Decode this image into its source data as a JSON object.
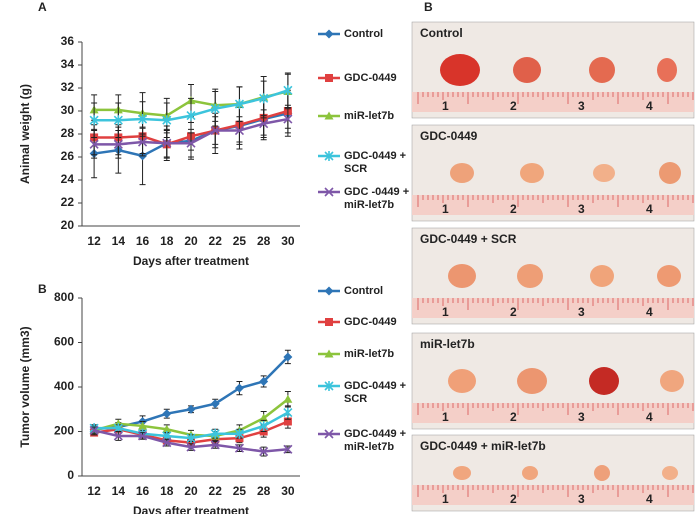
{
  "chart_data": [
    {
      "type": "line",
      "panel_label": "A",
      "x_label": "Days after treatment",
      "y_label": "Animal weight (g)",
      "categories": [
        12,
        14,
        16,
        18,
        20,
        22,
        25,
        28,
        30
      ],
      "ylim": [
        20,
        36
      ],
      "yticks": [
        20,
        22,
        24,
        26,
        28,
        30,
        32,
        34,
        36
      ],
      "series": [
        {
          "name": "Control",
          "color": "#2e75b6",
          "marker": "diamond",
          "values": [
            26.3,
            26.6,
            26.1,
            27.2,
            27.4,
            28.3,
            28.7,
            29.3,
            29.8
          ],
          "errors": [
            2.1,
            2.0,
            2.5,
            1.5,
            1.6,
            2.0,
            2.0,
            1.8,
            2.0
          ]
        },
        {
          "name": "GDC-0449",
          "color": "#e04040",
          "marker": "square",
          "values": [
            27.7,
            27.7,
            27.8,
            27.1,
            27.8,
            28.3,
            28.8,
            29.4,
            30.0
          ],
          "errors": [
            1.5,
            1.5,
            1.5,
            1.2,
            1.2,
            1.5,
            1.5,
            1.5,
            1.5
          ]
        },
        {
          "name": "miR-let7b",
          "color": "#8cc43c",
          "marker": "triangle",
          "values": [
            30.1,
            30.1,
            29.8,
            29.6,
            30.9,
            30.5,
            30.6,
            31.2,
            31.7
          ],
          "errors": [
            1.3,
            1.3,
            1.8,
            1.5,
            1.4,
            1.4,
            1.5,
            1.8,
            1.5
          ]
        },
        {
          "name": "GDC-0449 + SCR",
          "color": "#3cc4dc",
          "marker": "asterisk",
          "values": [
            29.2,
            29.2,
            29.3,
            29.2,
            29.6,
            30.2,
            30.6,
            31.1,
            31.8
          ],
          "errors": [
            1.5,
            1.5,
            1.5,
            1.5,
            1.5,
            1.5,
            1.5,
            1.5,
            1.5
          ]
        },
        {
          "name": "GDC -0449 + miR-let7b",
          "color": "#7e57a8",
          "marker": "x",
          "values": [
            27.1,
            27.1,
            27.3,
            27.2,
            27.2,
            28.3,
            28.3,
            28.9,
            29.3
          ],
          "errors": [
            1.2,
            1.2,
            1.2,
            1.2,
            1.2,
            1.2,
            1.2,
            1.2,
            1.2
          ]
        }
      ]
    },
    {
      "type": "line",
      "panel_label": "B",
      "x_label": "Days after treatment",
      "y_label": "Tumor volume (mm3)",
      "categories": [
        12,
        14,
        16,
        18,
        20,
        22,
        25,
        28,
        30
      ],
      "ylim": [
        0,
        800
      ],
      "yticks": [
        0,
        200,
        400,
        600,
        800
      ],
      "series": [
        {
          "name": "Control",
          "color": "#2e75b6",
          "marker": "diamond",
          "values": [
            210,
            220,
            245,
            280,
            300,
            325,
            395,
            425,
            535
          ],
          "errors": [
            20,
            20,
            25,
            20,
            15,
            20,
            30,
            25,
            30
          ]
        },
        {
          "name": "GDC-0449",
          "color": "#e04040",
          "marker": "square",
          "values": [
            195,
            210,
            185,
            160,
            150,
            165,
            170,
            200,
            245
          ],
          "errors": [
            15,
            15,
            15,
            15,
            15,
            20,
            20,
            25,
            30
          ]
        },
        {
          "name": "miR-let7b",
          "color": "#8cc43c",
          "marker": "triangle",
          "values": [
            205,
            235,
            225,
            210,
            185,
            180,
            205,
            260,
            345
          ],
          "errors": [
            20,
            20,
            20,
            20,
            20,
            20,
            25,
            30,
            35
          ]
        },
        {
          "name": "GDC-0449 + SCR",
          "color": "#3cc4dc",
          "marker": "asterisk",
          "values": [
            215,
            215,
            190,
            180,
            170,
            190,
            190,
            225,
            285
          ],
          "errors": [
            15,
            15,
            15,
            15,
            15,
            20,
            20,
            25,
            30
          ]
        },
        {
          "name": "GDC-0449 + miR-let7b",
          "color": "#7e57a8",
          "marker": "x",
          "values": [
            205,
            180,
            180,
            150,
            130,
            140,
            125,
            110,
            120
          ],
          "errors": [
            15,
            20,
            15,
            15,
            15,
            15,
            15,
            20,
            15
          ]
        }
      ]
    }
  ],
  "photo_panel": {
    "label": "B",
    "rows": [
      "Control",
      "GDC-0449",
      "GDC-0449 + SCR",
      "miR-let7b",
      "GDC-0449 + miR-let7b"
    ],
    "ruler_labels": [
      "1",
      "2",
      "3",
      "4"
    ]
  }
}
